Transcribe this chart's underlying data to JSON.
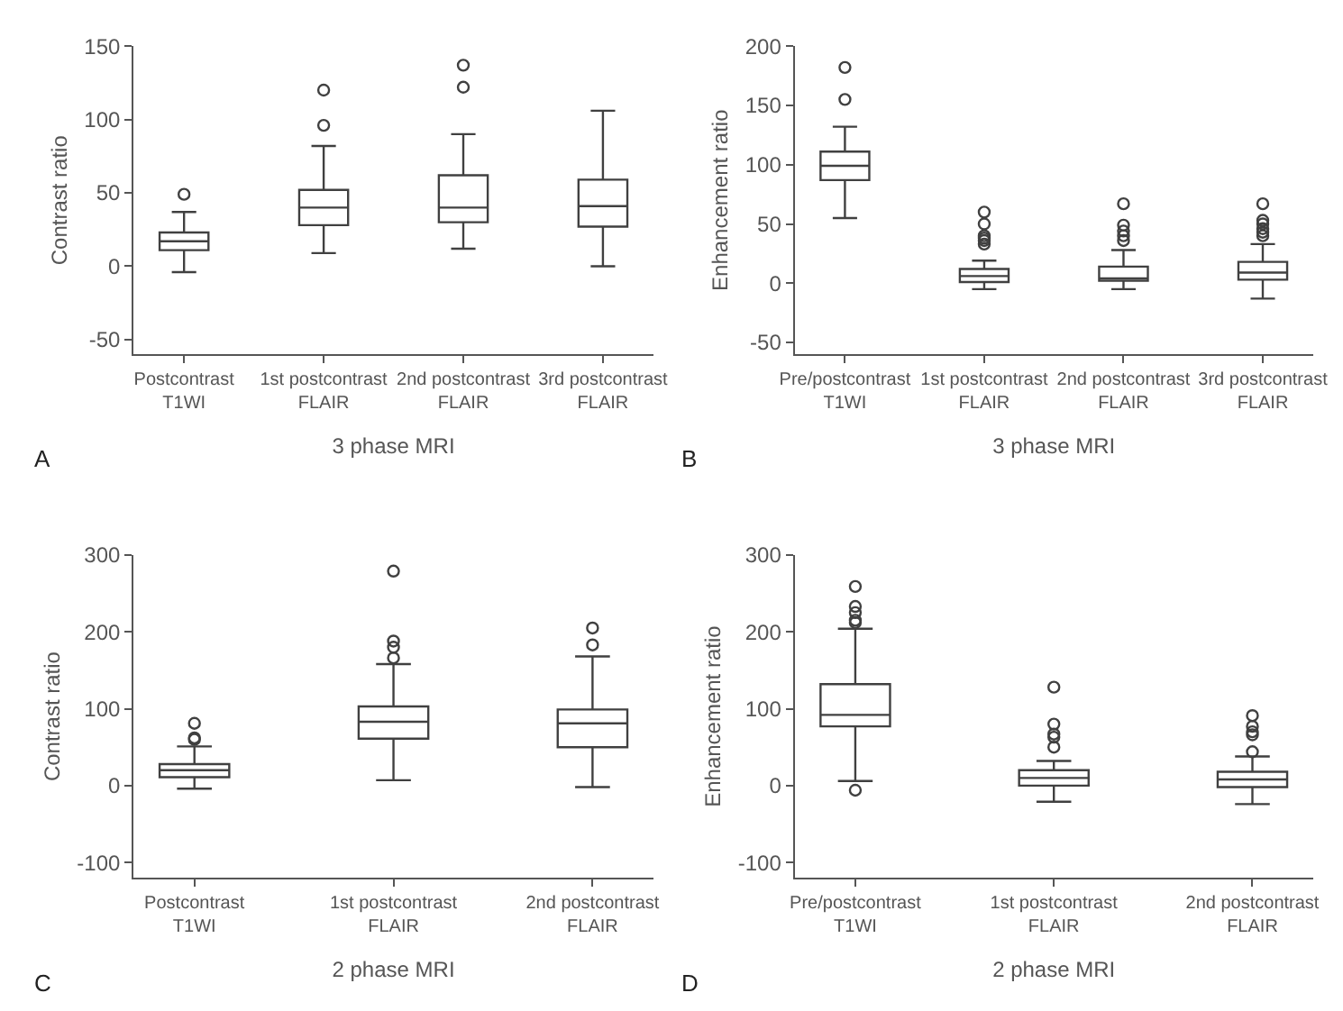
{
  "chart_data": [
    {
      "type": "box",
      "ylabel": "Contrast ratio",
      "xlabel": "3 phase MRI",
      "annotations": [
        "A"
      ],
      "color": "#404040",
      "categories": [
        "Postcontrast T1WI",
        "1st postcontrast FLAIR",
        "2nd postcontrast FLAIR",
        "3rd postcontrast FLAIR"
      ],
      "ylim": [
        -60,
        150
      ],
      "yticks": [
        -50,
        0,
        50,
        100,
        150
      ],
      "boxes": [
        {
          "low": -4,
          "q1": 11,
          "median": 17,
          "q3": 23,
          "high": 37,
          "outliers": [
            49
          ]
        },
        {
          "low": 9,
          "q1": 28,
          "median": 40,
          "q3": 52,
          "high": 82,
          "outliers": [
            96,
            120
          ]
        },
        {
          "low": 12,
          "q1": 30,
          "median": 40,
          "q3": 62,
          "high": 90,
          "outliers": [
            122,
            137
          ]
        },
        {
          "low": 0,
          "q1": 27,
          "median": 41,
          "q3": 59,
          "high": 106
        }
      ]
    },
    {
      "type": "box",
      "ylabel": "Enhancement ratio",
      "xlabel": "3 phase MRI",
      "annotations": [
        "B"
      ],
      "color": "#404040",
      "categories": [
        "Pre/postcontrast T1WI",
        "1st postcontrast FLAIR",
        "2nd postcontrast FLAIR",
        "3rd postcontrast FLAIR"
      ],
      "ylim": [
        -60,
        200
      ],
      "yticks": [
        -50,
        0,
        50,
        100,
        150,
        200
      ],
      "boxes": [
        {
          "low": 55,
          "q1": 87,
          "median": 99,
          "q3": 111,
          "high": 132,
          "outliers": [
            155,
            182
          ]
        },
        {
          "low": -5,
          "q1": 1,
          "median": 6,
          "q3": 12,
          "high": 19,
          "outliers": [
            33,
            36,
            38,
            40,
            50,
            60
          ]
        },
        {
          "low": -5,
          "q1": 2,
          "median": 4,
          "q3": 14,
          "high": 28,
          "outliers": [
            36,
            40,
            44,
            49,
            67
          ]
        },
        {
          "low": -13,
          "q1": 3,
          "median": 9,
          "q3": 18,
          "high": 33,
          "outliers": [
            40,
            43,
            46,
            50,
            53,
            67
          ]
        }
      ]
    },
    {
      "type": "box",
      "ylabel": "Contrast ratio",
      "xlabel": "2 phase MRI",
      "annotations": [
        "C"
      ],
      "color": "#404040",
      "categories": [
        "Postcontrast T1WI",
        "1st postcontrast FLAIR",
        "2nd postcontrast FLAIR"
      ],
      "ylim": [
        -120,
        300
      ],
      "yticks": [
        -100,
        0,
        100,
        200,
        300
      ],
      "boxes": [
        {
          "low": -4,
          "q1": 11,
          "median": 20,
          "q3": 28,
          "high": 51,
          "outliers": [
            60,
            62,
            81
          ]
        },
        {
          "low": 7,
          "q1": 61,
          "median": 83,
          "q3": 103,
          "high": 158,
          "outliers": [
            166,
            180,
            188,
            279
          ]
        },
        {
          "low": -2,
          "q1": 50,
          "median": 81,
          "q3": 99,
          "high": 168,
          "outliers": [
            183,
            205
          ]
        }
      ]
    },
    {
      "type": "box",
      "ylabel": "Enhancement ratio",
      "xlabel": "2 phase MRI",
      "annotations": [
        "D"
      ],
      "color": "#404040",
      "categories": [
        "Pre/postcontrast T1WI",
        "1st postcontrast FLAIR",
        "2nd postcontrast FLAIR"
      ],
      "ylim": [
        -120,
        300
      ],
      "yticks": [
        -100,
        0,
        100,
        200,
        300
      ],
      "boxes": [
        {
          "low": 6,
          "q1": 77,
          "median": 92,
          "q3": 132,
          "high": 204,
          "outliers": [
            -6,
            212,
            215,
            225,
            233,
            259
          ]
        },
        {
          "low": -21,
          "q1": 0,
          "median": 10,
          "q3": 20,
          "high": 32,
          "outliers": [
            50,
            63,
            67,
            80,
            128
          ]
        },
        {
          "low": -24,
          "q1": -2,
          "median": 8,
          "q3": 18,
          "high": 38,
          "outliers": [
            44,
            66,
            70,
            77,
            91
          ]
        }
      ]
    }
  ]
}
